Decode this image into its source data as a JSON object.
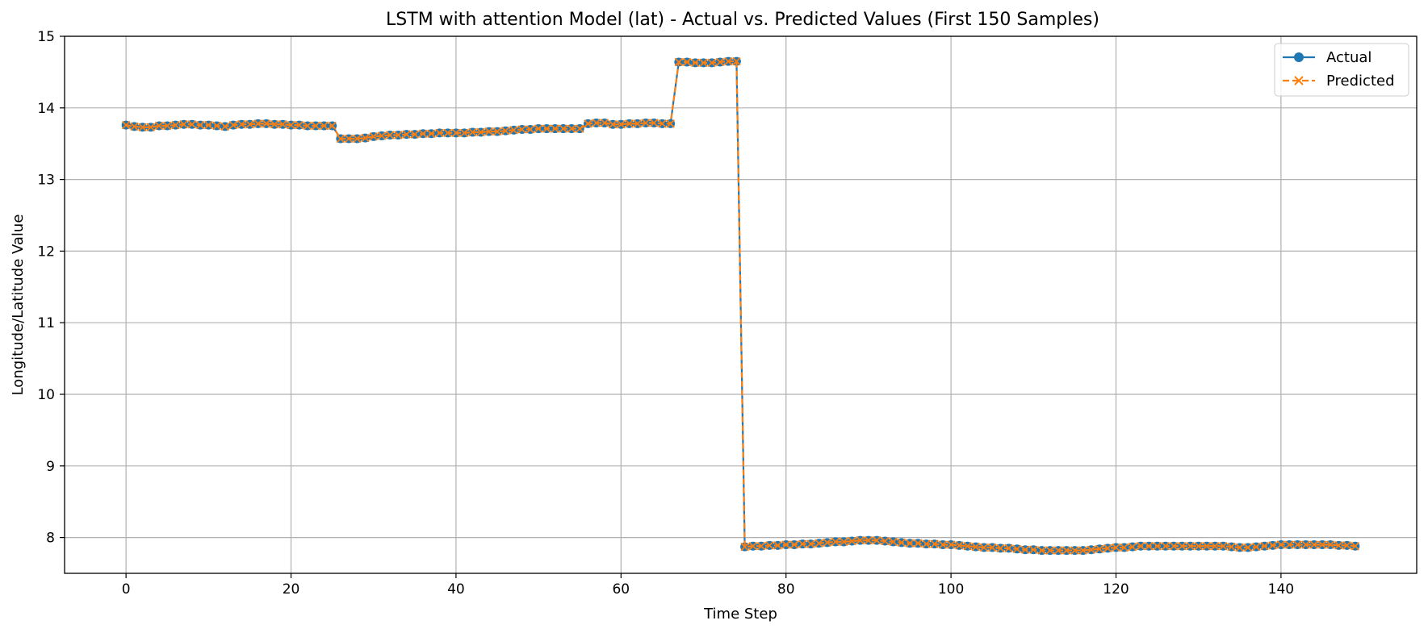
{
  "chart_data": {
    "type": "line",
    "title": "LSTM with attention Model (lat) - Actual vs. Predicted Values (First 150 Samples)",
    "xlabel": "Time Step",
    "ylabel": "Longitude/Latitude Value",
    "xlim": [
      -7.45,
      156.45
    ],
    "ylim": [
      7.5,
      15
    ],
    "xticks": [
      0,
      20,
      40,
      60,
      80,
      100,
      120,
      140
    ],
    "yticks": [
      8,
      9,
      10,
      11,
      12,
      13,
      14,
      15
    ],
    "grid": true,
    "legend_position": "top-right",
    "series": [
      {
        "name": "Actual",
        "color": "#1f77b4",
        "marker": "circle",
        "line_style": "solid",
        "values": [
          13.76,
          13.74,
          13.73,
          13.73,
          13.75,
          13.75,
          13.76,
          13.77,
          13.77,
          13.76,
          13.76,
          13.75,
          13.74,
          13.76,
          13.77,
          13.77,
          13.78,
          13.78,
          13.77,
          13.77,
          13.76,
          13.76,
          13.75,
          13.75,
          13.75,
          13.75,
          13.57,
          13.57,
          13.57,
          13.58,
          13.6,
          13.61,
          13.62,
          13.62,
          13.63,
          13.63,
          13.64,
          13.64,
          13.65,
          13.65,
          13.65,
          13.65,
          13.66,
          13.66,
          13.67,
          13.67,
          13.68,
          13.69,
          13.7,
          13.7,
          13.71,
          13.71,
          13.71,
          13.71,
          13.71,
          13.71,
          13.78,
          13.79,
          13.79,
          13.77,
          13.77,
          13.78,
          13.78,
          13.79,
          13.79,
          13.78,
          13.78,
          14.64,
          14.64,
          14.63,
          14.63,
          14.63,
          14.64,
          14.65,
          14.65,
          7.87,
          7.88,
          7.88,
          7.89,
          7.89,
          7.9,
          7.9,
          7.91,
          7.91,
          7.92,
          7.93,
          7.94,
          7.94,
          7.95,
          7.96,
          7.96,
          7.96,
          7.95,
          7.94,
          7.93,
          7.92,
          7.92,
          7.91,
          7.91,
          7.9,
          7.9,
          7.89,
          7.88,
          7.87,
          7.86,
          7.86,
          7.85,
          7.85,
          7.84,
          7.83,
          7.83,
          7.82,
          7.82,
          7.82,
          7.82,
          7.82,
          7.82,
          7.83,
          7.84,
          7.85,
          7.86,
          7.86,
          7.87,
          7.88,
          7.88,
          7.88,
          7.88,
          7.88,
          7.88,
          7.88,
          7.88,
          7.88,
          7.88,
          7.88,
          7.87,
          7.86,
          7.86,
          7.87,
          7.88,
          7.89,
          7.9,
          7.9,
          7.9,
          7.9,
          7.9,
          7.9,
          7.9,
          7.89,
          7.89,
          7.88
        ]
      },
      {
        "name": "Predicted",
        "color": "#ff7f0e",
        "marker": "x",
        "line_style": "dashed",
        "values": [
          13.76,
          13.74,
          13.73,
          13.73,
          13.75,
          13.75,
          13.76,
          13.77,
          13.77,
          13.76,
          13.76,
          13.75,
          13.74,
          13.76,
          13.77,
          13.77,
          13.78,
          13.78,
          13.77,
          13.77,
          13.76,
          13.76,
          13.75,
          13.75,
          13.75,
          13.75,
          13.57,
          13.57,
          13.57,
          13.58,
          13.6,
          13.61,
          13.62,
          13.62,
          13.63,
          13.63,
          13.64,
          13.64,
          13.65,
          13.65,
          13.65,
          13.65,
          13.66,
          13.66,
          13.67,
          13.67,
          13.68,
          13.69,
          13.7,
          13.7,
          13.71,
          13.71,
          13.71,
          13.71,
          13.71,
          13.71,
          13.78,
          13.79,
          13.79,
          13.77,
          13.77,
          13.78,
          13.78,
          13.79,
          13.79,
          13.78,
          13.78,
          14.64,
          14.64,
          14.63,
          14.63,
          14.63,
          14.64,
          14.65,
          14.65,
          7.87,
          7.88,
          7.88,
          7.89,
          7.89,
          7.9,
          7.9,
          7.91,
          7.91,
          7.92,
          7.93,
          7.94,
          7.94,
          7.95,
          7.96,
          7.96,
          7.96,
          7.95,
          7.94,
          7.93,
          7.92,
          7.92,
          7.91,
          7.91,
          7.9,
          7.9,
          7.89,
          7.88,
          7.87,
          7.86,
          7.86,
          7.85,
          7.85,
          7.84,
          7.83,
          7.83,
          7.82,
          7.82,
          7.82,
          7.82,
          7.82,
          7.82,
          7.83,
          7.84,
          7.85,
          7.86,
          7.86,
          7.87,
          7.88,
          7.88,
          7.88,
          7.88,
          7.88,
          7.88,
          7.88,
          7.88,
          7.88,
          7.88,
          7.88,
          7.87,
          7.86,
          7.86,
          7.87,
          7.88,
          7.89,
          7.9,
          7.9,
          7.9,
          7.9,
          7.9,
          7.9,
          7.9,
          7.89,
          7.89,
          7.88
        ]
      }
    ]
  }
}
